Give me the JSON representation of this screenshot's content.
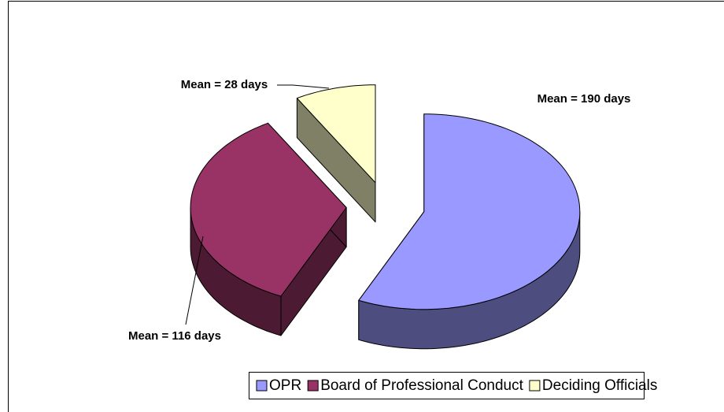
{
  "chart_data": {
    "type": "pie",
    "categories": [
      "OPR",
      "Board of Professional Conduct",
      "Deciding Officials"
    ],
    "values": [
      190,
      116,
      28
    ],
    "value_labels": [
      "Mean = 190 days",
      "Mean = 116 days",
      "Mean = 28 days"
    ],
    "colors": [
      "#9999ff",
      "#993366",
      "#ffffcc"
    ],
    "legend": "bottom"
  }
}
